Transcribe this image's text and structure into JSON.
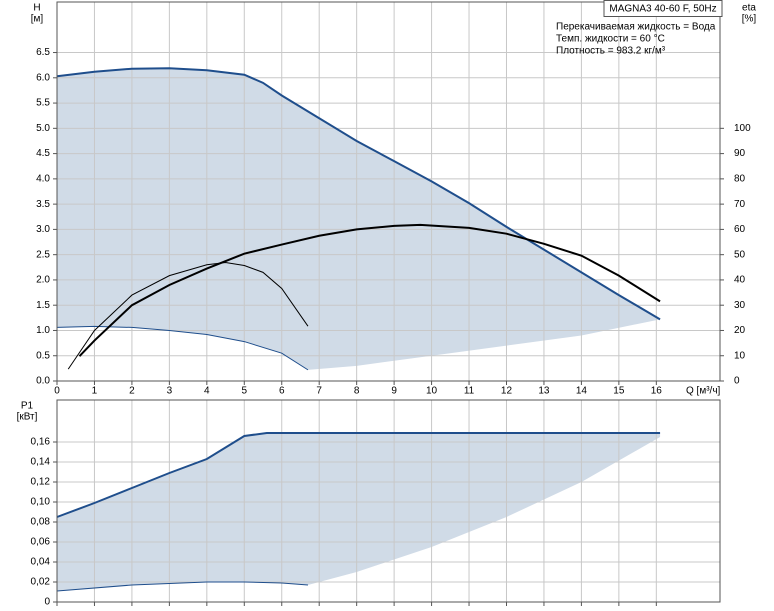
{
  "chart_data": [
    {
      "type": "line",
      "title": "MAGNA3 40-60 F, 50Hz",
      "annotations": [
        "Перекачиваемая жидкость = Вода",
        "Темп. жидкости = 60 °C",
        "Плотность = 983.2 кг/м³"
      ],
      "ylabel": "H",
      "yunit": "[м]",
      "y2label": "eta",
      "y2unit": "[%]",
      "xlabel": "Q [м³/ч]",
      "xlim": [
        0,
        17.7
      ],
      "xticks": [
        0,
        1,
        2,
        3,
        4,
        5,
        6,
        7,
        8,
        9,
        10,
        11,
        12,
        13,
        14,
        15,
        16
      ],
      "ylim": [
        0,
        7.5
      ],
      "yticks": [
        {
          "value": 0,
          "label": "0.0"
        },
        0.5,
        {
          "value": 1,
          "label": "1.0"
        },
        1.5,
        {
          "value": 2,
          "label": "2.0"
        },
        2.5,
        {
          "value": 3,
          "label": "3.0"
        },
        3.5,
        {
          "value": 4,
          "label": "4.0"
        },
        4.5,
        {
          "value": 5,
          "label": "5.0"
        },
        5.5,
        {
          "value": 6,
          "label": "6.0"
        },
        6.5
      ],
      "y2lim": [
        0,
        150
      ],
      "y2ticks": [
        0,
        10,
        20,
        30,
        40,
        50,
        60,
        70,
        80,
        90,
        100
      ],
      "grid": true,
      "region": {
        "color": "#d0dbe7",
        "upper_series": 0,
        "lower_x": [
          0,
          1,
          2,
          3,
          4,
          5,
          6,
          6.7,
          8,
          10,
          12,
          14,
          16.1
        ],
        "lower_values": [
          1.06,
          1.08,
          1.06,
          1.0,
          0.92,
          0.78,
          0.55,
          0.22,
          0.3,
          0.5,
          0.7,
          0.9,
          1.22
        ]
      },
      "series": [
        {
          "color": "#1f4e8c",
          "x": [
            0,
            1,
            2,
            3,
            4,
            5,
            5.5,
            6,
            7,
            8,
            9,
            10,
            11,
            12,
            13,
            14,
            15,
            16.1
          ],
          "values": [
            6.03,
            6.12,
            6.18,
            6.19,
            6.15,
            6.06,
            5.9,
            5.65,
            5.2,
            4.75,
            4.35,
            3.95,
            3.52,
            3.05,
            2.6,
            2.15,
            1.7,
            1.22
          ]
        },
        {
          "color": "#1f4e8c",
          "x": [
            0,
            1,
            2,
            3,
            4,
            5,
            6,
            6.7
          ],
          "values": [
            1.06,
            1.08,
            1.06,
            1.0,
            0.92,
            0.78,
            0.55,
            0.22
          ]
        },
        {
          "color": "#000000",
          "axis": "y2",
          "x": [
            0.6,
            1,
            2,
            3,
            4,
            5,
            6,
            7,
            8,
            9,
            9.7,
            11,
            12,
            13,
            14,
            15,
            16.1
          ],
          "values": [
            9.8,
            16,
            30,
            38,
            44.5,
            50.4,
            54,
            57.5,
            60,
            61.4,
            61.8,
            60.6,
            58.3,
            54.3,
            49.6,
            41.7,
            31.5
          ]
        },
        {
          "color": "#000000",
          "axis": "y2",
          "x": [
            0.3,
            1,
            2,
            3,
            4,
            4.5,
            5,
            5.5,
            6,
            6.7
          ],
          "values": [
            4.7,
            20,
            34,
            41.7,
            46,
            46.9,
            45.7,
            43,
            36.6,
            21.7
          ]
        }
      ]
    },
    {
      "type": "line",
      "ylabel": "P1",
      "yunit": "[кВт]",
      "xlim": [
        0,
        17.7
      ],
      "xticks": [
        0,
        1,
        2,
        3,
        4,
        5,
        6,
        7,
        8,
        9,
        10,
        11,
        12,
        13,
        14,
        15,
        16
      ],
      "show_xtick_labels": false,
      "ylim": [
        0,
        0.202
      ],
      "yticks": [
        0,
        {
          "value": 0.02,
          "label": "0,02"
        },
        {
          "value": 0.04,
          "label": "0,04"
        },
        {
          "value": 0.06,
          "label": "0,06"
        },
        {
          "value": 0.08,
          "label": "0,08"
        },
        {
          "value": 0.1,
          "label": "0,10"
        },
        {
          "value": 0.12,
          "label": "0,12"
        },
        {
          "value": 0.14,
          "label": "0,14"
        },
        {
          "value": 0.16,
          "label": "0,16"
        }
      ],
      "grid": true,
      "region": {
        "color": "#d0dbe7",
        "upper_series": 0,
        "lower_x": [
          0,
          2,
          4,
          5,
          6,
          6.7,
          8,
          10,
          12,
          14,
          16.1
        ],
        "lower_values": [
          0.011,
          0.017,
          0.02,
          0.02,
          0.019,
          0.017,
          0.03,
          0.055,
          0.085,
          0.12,
          0.165
        ]
      },
      "series": [
        {
          "color": "#1f4e8c",
          "x": [
            0,
            1,
            2,
            3,
            4,
            5,
            5.6,
            6,
            16.1
          ],
          "values": [
            0.085,
            0.099,
            0.114,
            0.129,
            0.143,
            0.166,
            0.169,
            0.169,
            0.169
          ]
        },
        {
          "color": "#1f4e8c",
          "x": [
            0,
            2,
            4,
            5,
            6,
            6.7
          ],
          "values": [
            0.011,
            0.017,
            0.02,
            0.02,
            0.019,
            0.017
          ]
        }
      ]
    }
  ]
}
